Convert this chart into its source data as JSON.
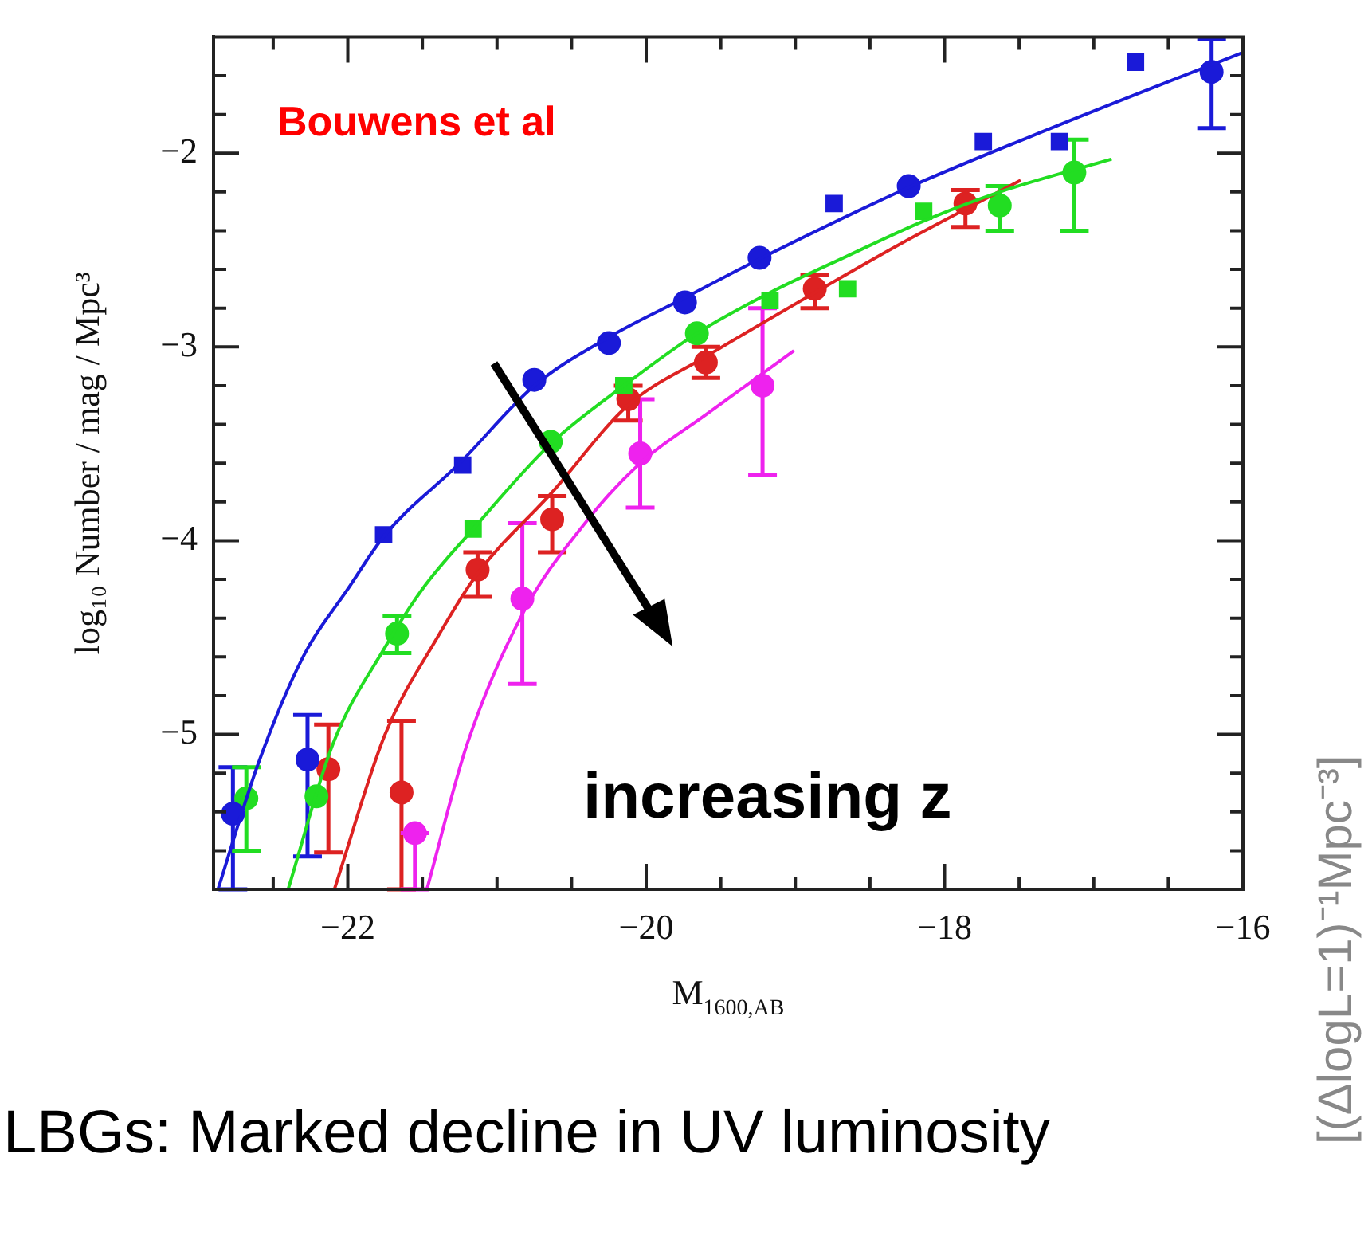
{
  "chart_data": {
    "type": "scatter",
    "xlabel": "M$_{1600,AB}$",
    "ylabel": "log₁₀ Number / mag / Mpc³",
    "xlim": [
      -22.9,
      -16
    ],
    "ylim": [
      -5.8,
      -1.4
    ],
    "xticks": [
      {
        "value": -22.5,
        "label": null
      },
      -22,
      {
        "value": -21.5,
        "label": null
      },
      {
        "value": -21,
        "label": null
      },
      {
        "value": -20.5,
        "label": null
      },
      -20,
      {
        "value": -19.5,
        "label": null
      },
      {
        "value": -19,
        "label": null
      },
      {
        "value": -18.5,
        "label": null
      },
      -18,
      {
        "value": -17.5,
        "label": null
      },
      {
        "value": -17,
        "label": null
      },
      {
        "value": -16.5,
        "label": null
      },
      -16
    ],
    "yticks": [
      {
        "value": -5.6,
        "label": null
      },
      {
        "value": -5.4,
        "label": null
      },
      {
        "value": -5.2,
        "label": null
      },
      -5,
      {
        "value": -4.8,
        "label": null
      },
      {
        "value": -4.6,
        "label": null
      },
      {
        "value": -4.4,
        "label": null
      },
      {
        "value": -4.2,
        "label": null
      },
      -4,
      {
        "value": -3.8,
        "label": null
      },
      {
        "value": -3.6,
        "label": null
      },
      {
        "value": -3.4,
        "label": null
      },
      {
        "value": -3.2,
        "label": null
      },
      -3,
      {
        "value": -2.8,
        "label": null
      },
      {
        "value": -2.6,
        "label": null
      },
      {
        "value": -2.4,
        "label": null
      },
      {
        "value": -2.2,
        "label": null
      },
      -2,
      {
        "value": -1.8,
        "label": null
      },
      {
        "value": -1.6,
        "label": null
      }
    ],
    "grid": false,
    "legend": false,
    "series": [
      {
        "type": "line",
        "color": "#1a1ad8",
        "marker": "none",
        "x": [
          -22.87,
          -22.6,
          -22.3,
          -22.0,
          -21.75,
          -21.25,
          -20.75,
          -20.25,
          -19.75,
          -19.25,
          -18.25,
          -17.25,
          -16.0
        ],
        "values": [
          -5.8,
          -5.15,
          -4.6,
          -4.25,
          -3.97,
          -3.6,
          -3.2,
          -2.95,
          -2.75,
          -2.55,
          -2.18,
          -1.86,
          -1.48
        ]
      },
      {
        "type": "line",
        "color": "#22dd22",
        "marker": "none",
        "x": [
          -22.4,
          -22.1,
          -21.75,
          -21.5,
          -21.16,
          -20.64,
          -20.15,
          -19.66,
          -19.17,
          -18.65,
          -18.14,
          -17.63,
          -16.88
        ],
        "values": [
          -5.8,
          -5.05,
          -4.55,
          -4.25,
          -3.94,
          -3.5,
          -3.2,
          -2.93,
          -2.72,
          -2.53,
          -2.35,
          -2.2,
          -2.03
        ]
      },
      {
        "type": "line",
        "color": "#dd2222",
        "marker": "none",
        "x": [
          -22.09,
          -21.75,
          -21.4,
          -21.13,
          -20.63,
          -20.12,
          -19.6,
          -18.87,
          -18.3,
          -17.49
        ],
        "values": [
          -5.8,
          -5.0,
          -4.5,
          -4.17,
          -3.75,
          -3.3,
          -3.05,
          -2.72,
          -2.47,
          -2.14
        ]
      },
      {
        "type": "line",
        "color": "#ee22ee",
        "marker": "none",
        "x": [
          -21.47,
          -21.2,
          -20.83,
          -20.4,
          -20.04,
          -19.6,
          -19.01
        ],
        "values": [
          -5.8,
          -5.05,
          -4.38,
          -3.9,
          -3.6,
          -3.35,
          -3.02
        ]
      },
      {
        "type": "scatter",
        "color": "#1a1ad8",
        "marker": "circle",
        "x": [
          -22.77,
          -22.27,
          -20.75,
          -20.25,
          -19.74,
          -19.24,
          -18.24,
          -16.21
        ],
        "values": [
          -5.41,
          -5.13,
          -3.17,
          -2.98,
          -2.77,
          -2.54,
          -2.17,
          -1.58
        ],
        "errors": [
          [
            -5.8,
            -5.17
          ],
          [
            -5.63,
            -4.9
          ],
          null,
          null,
          null,
          null,
          null,
          [
            -1.87,
            -1.41
          ]
        ]
      },
      {
        "type": "scatter",
        "color": "#1a1ad8",
        "marker": "square",
        "x": [
          -21.76,
          -21.23,
          -18.74,
          -17.74,
          -17.23,
          -16.72
        ],
        "values": [
          -3.97,
          -3.61,
          -2.26,
          -1.94,
          -1.94,
          -1.53
        ]
      },
      {
        "type": "scatter",
        "color": "#22dd22",
        "marker": "circle",
        "x": [
          -22.68,
          -22.21,
          -21.67,
          -20.64,
          -19.66,
          -17.63,
          -17.13
        ],
        "values": [
          -5.33,
          -5.32,
          -4.48,
          -3.49,
          -2.93,
          -2.27,
          -2.1
        ],
        "errors": [
          [
            -5.6,
            -5.17
          ],
          null,
          [
            -4.58,
            -4.39
          ],
          null,
          null,
          [
            -2.4,
            -2.17
          ],
          [
            -2.4,
            -1.93
          ]
        ]
      },
      {
        "type": "scatter",
        "color": "#22dd22",
        "marker": "square",
        "x": [
          -21.16,
          -20.15,
          -19.17,
          -18.65,
          -18.14
        ],
        "values": [
          -3.94,
          -3.2,
          -2.76,
          -2.7,
          -2.3
        ]
      },
      {
        "type": "scatter",
        "color": "#dd2222",
        "marker": "circle",
        "x": [
          -22.13,
          -21.64,
          -21.13,
          -20.63,
          -20.12,
          -19.6,
          -18.87,
          -17.86
        ],
        "values": [
          -5.18,
          -5.3,
          -4.15,
          -3.89,
          -3.27,
          -3.08,
          -2.7,
          -2.26
        ],
        "errors": [
          [
            -5.61,
            -4.95
          ],
          [
            -5.8,
            -4.93
          ],
          [
            -4.29,
            -4.06
          ],
          [
            -4.06,
            -3.77
          ],
          [
            -3.38,
            -3.2
          ],
          [
            -3.16,
            -3.0
          ],
          [
            -2.8,
            -2.63
          ],
          [
            -2.38,
            -2.19
          ]
        ]
      },
      {
        "type": "scatter",
        "color": "#ee22ee",
        "marker": "circle",
        "x": [
          -21.55,
          -20.83,
          -20.04,
          -19.22
        ],
        "values": [
          -5.51,
          -4.3,
          -3.55,
          -3.2
        ],
        "errors": [
          [
            -5.8,
            -5.51
          ],
          [
            -4.74,
            -3.91
          ],
          [
            -3.83,
            -3.27
          ],
          [
            -3.66,
            -2.8
          ]
        ]
      }
    ],
    "annotations": [
      "Bouwens et al",
      "increasing z",
      "LBGs: Marked decline in UV luminosity",
      "[(ΔlogL=1)⁻¹Mpc⁻³]"
    ]
  }
}
